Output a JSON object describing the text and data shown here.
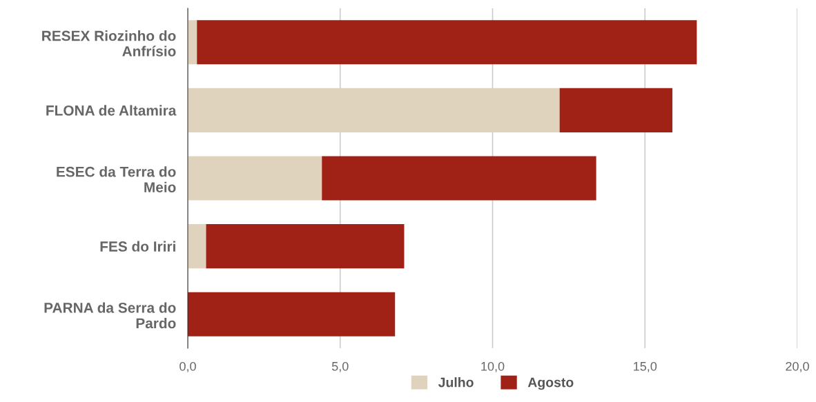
{
  "chart_data": {
    "type": "bar",
    "orientation": "horizontal",
    "stacked": true,
    "categories": [
      "RESEX Riozinho do\nAnfrísio",
      "FLONA de Altamira",
      "ESEC da Terra do\nMeio",
      "FES do Iriri",
      "PARNA da Serra do\nPardo"
    ],
    "series": [
      {
        "name": "Julho",
        "color": "#e0d3bd",
        "values": [
          0.3,
          12.2,
          4.4,
          0.6,
          0
        ]
      },
      {
        "name": "Agosto",
        "color": "#a02216",
        "values": [
          16.4,
          3.7,
          9.0,
          6.5,
          6.8
        ]
      }
    ],
    "xlim": [
      0,
      20
    ],
    "xticks": [
      {
        "value": 0,
        "label": "0,0"
      },
      {
        "value": 5,
        "label": "5,0"
      },
      {
        "value": 10,
        "label": "10,0"
      },
      {
        "value": 15,
        "label": "15,0"
      },
      {
        "value": 20,
        "label": "20,0"
      }
    ],
    "grid": "x",
    "legend": "bottom"
  }
}
